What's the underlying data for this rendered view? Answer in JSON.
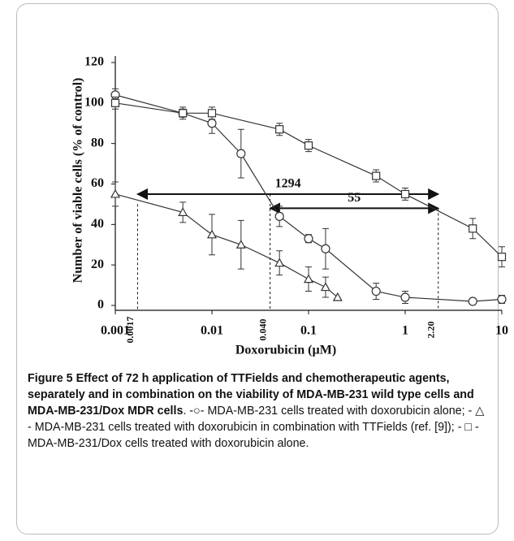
{
  "chart_data": {
    "type": "line",
    "xlabel": "Doxorubicin (µM)",
    "ylabel": "Number of viable cells (% of control)",
    "xscale": "log",
    "xlim": [
      0.001,
      10
    ],
    "xticks": [
      0.001,
      0.01,
      0.1,
      1,
      10
    ],
    "ylim": [
      0,
      120
    ],
    "yticks": [
      0,
      20,
      40,
      60,
      80,
      100,
      120
    ],
    "series": [
      {
        "marker": "circle",
        "color": "#333333",
        "x": [
          0.001,
          0.005,
          0.01,
          0.02,
          0.05,
          0.1,
          0.15,
          0.5,
          1,
          5,
          10
        ],
        "values": [
          104,
          95,
          90,
          75,
          44,
          33,
          28,
          7,
          4,
          2,
          3
        ],
        "errors": [
          3,
          3,
          5,
          12,
          5,
          2,
          10,
          4,
          3,
          1,
          2
        ]
      },
      {
        "marker": "square",
        "color": "#333333",
        "x": [
          0.001,
          0.005,
          0.01,
          0.05,
          0.1,
          0.5,
          1,
          5,
          10
        ],
        "values": [
          100,
          95,
          95,
          87,
          79,
          64,
          55,
          38,
          24
        ],
        "errors": [
          3,
          2,
          3,
          3,
          3,
          3,
          3,
          5,
          5
        ]
      },
      {
        "marker": "triangle",
        "color": "#333333",
        "x": [
          0.001,
          0.005,
          0.01,
          0.02,
          0.05,
          0.1,
          0.15,
          0.2
        ],
        "values": [
          55,
          46,
          35,
          30,
          21,
          13,
          9,
          4
        ],
        "errors": [
          6,
          5,
          10,
          12,
          6,
          6,
          5,
          0
        ]
      }
    ],
    "vlines": [
      {
        "value": 0.0017,
        "label": "0.0017",
        "top": 50
      },
      {
        "value": 0.04,
        "label": "0.040",
        "top": 55
      },
      {
        "value": 2.2,
        "label": "2.20",
        "top": 48
      }
    ],
    "arrows": [
      {
        "text": "1294",
        "from": 0.0017,
        "to": 2.2,
        "y": 55
      },
      {
        "text": "55",
        "from": 0.04,
        "to": 2.2,
        "y": 48
      }
    ]
  },
  "caption": {
    "title": "Figure 5 Effect of 72 h application of TTFields and chemotherapeutic agents, separately and in combination on the viability of MDA-MB-231 wild type cells and MDA-MB-231/Dox MDR cells",
    "text": ". -○- MDA-MB-231 cells treated with doxorubicin alone; - △ - MDA-MB-231 cells treated with doxorubicin in combination with TTFields (ref. [9]); - □ - MDA-MB-231/Dox cells treated with doxorubicin alone."
  }
}
